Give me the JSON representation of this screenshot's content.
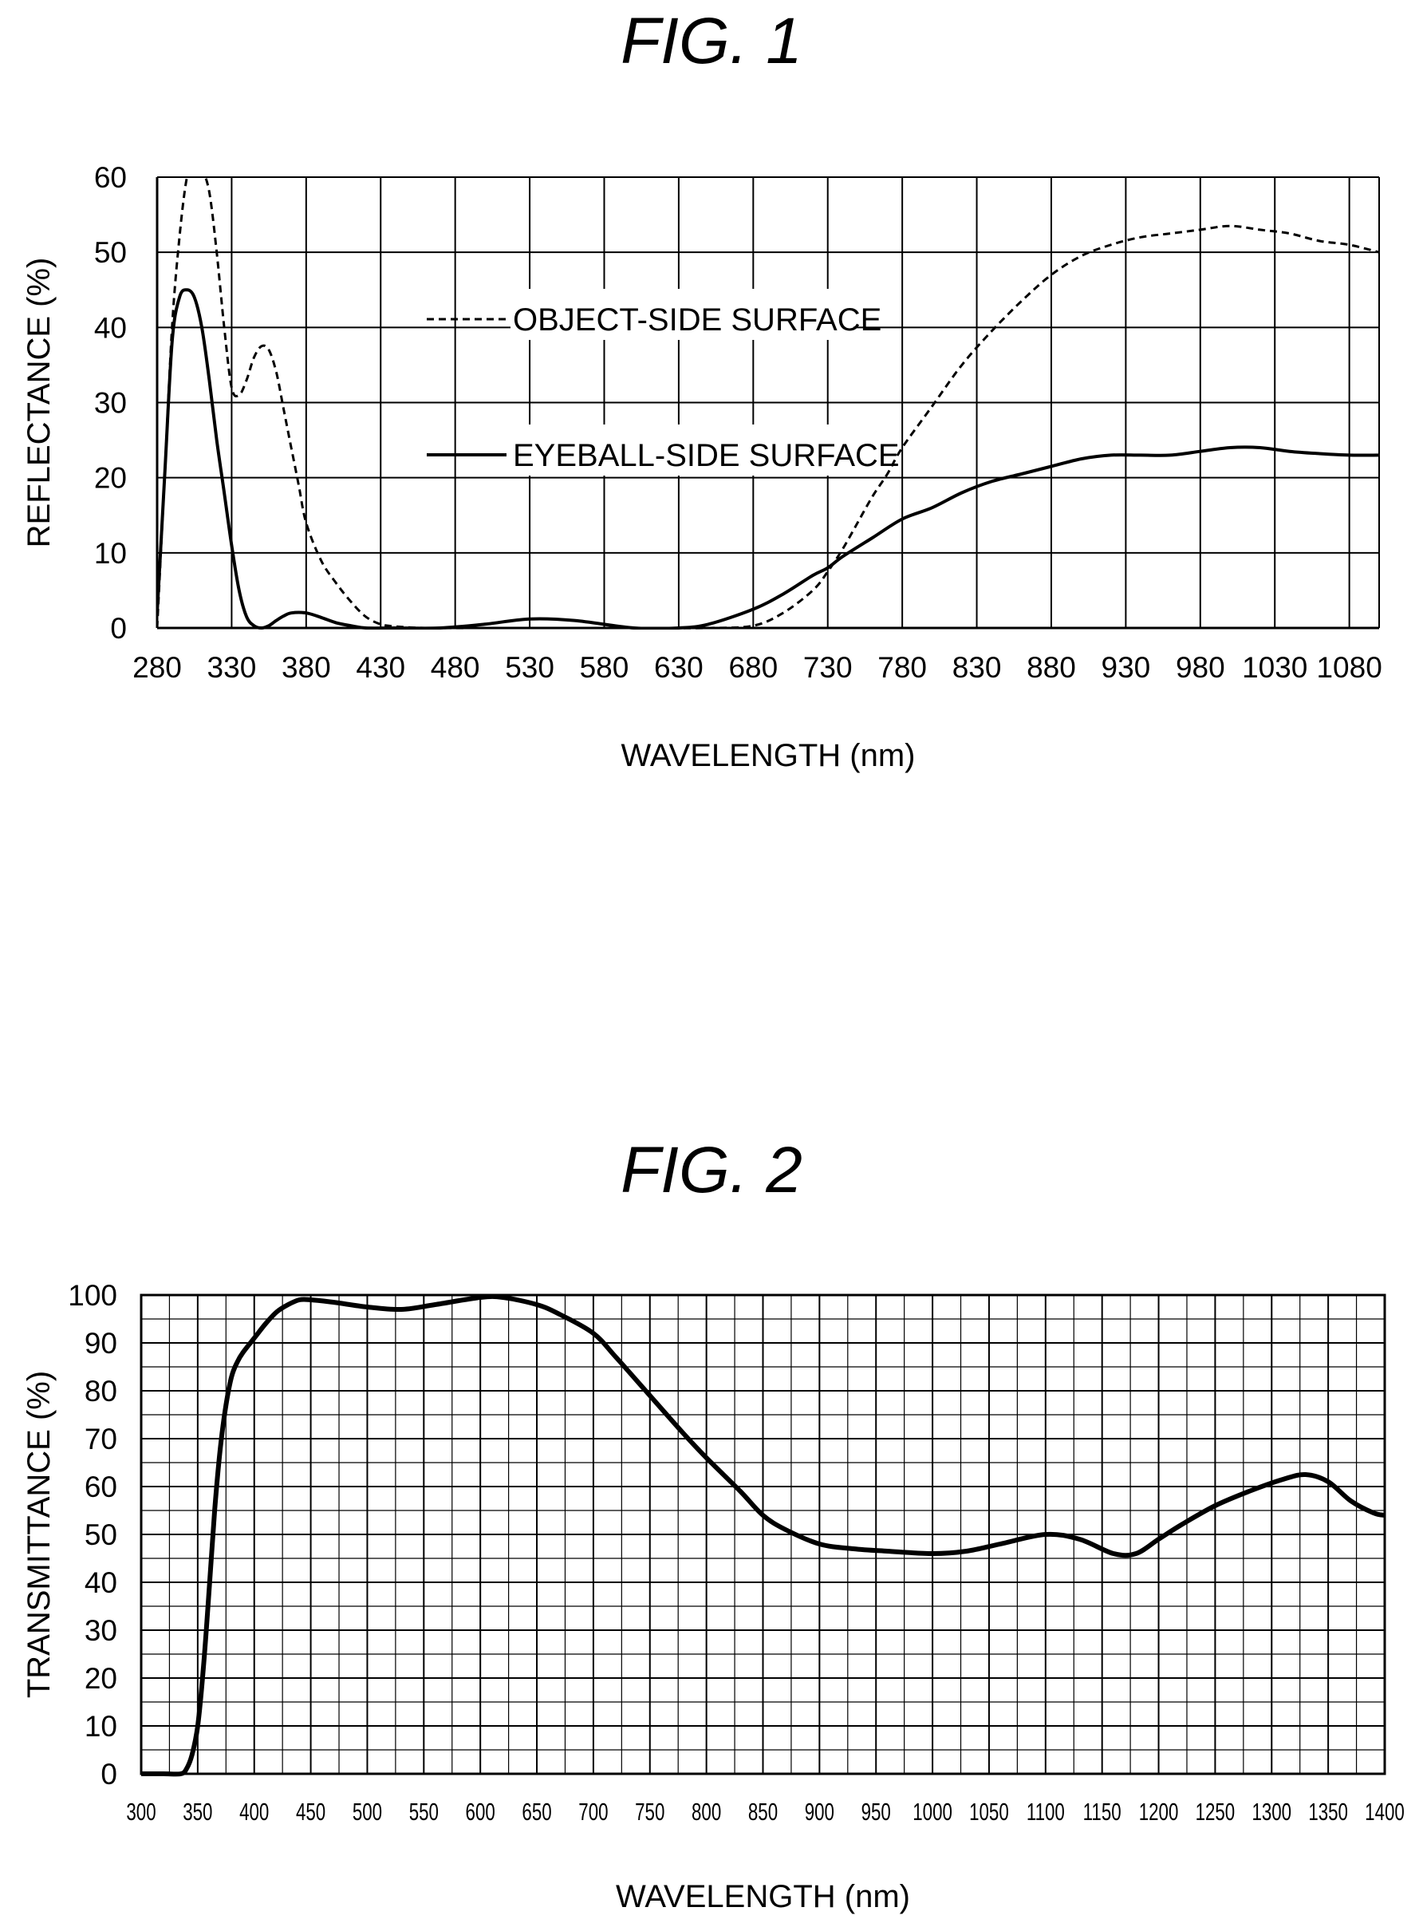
{
  "figure1": {
    "title": "FIG. 1",
    "chart_data": {
      "type": "line",
      "xlabel": "WAVELENGTH (nm)",
      "ylabel": "REFLECTANCE (%)",
      "xlim": [
        280,
        1100
      ],
      "ylim": [
        0,
        60
      ],
      "x_ticks": [
        "280",
        "330",
        "380",
        "430",
        "480",
        "530",
        "580",
        "630",
        "680",
        "730",
        "780",
        "830",
        "880",
        "930",
        "980",
        "1030",
        "1080"
      ],
      "y_ticks": [
        "0",
        "10",
        "20",
        "30",
        "40",
        "50",
        "60"
      ],
      "grid": true,
      "legend_entries": [
        "OBJECT-SIDE SURFACE",
        "EYEBALL-SIDE SURFACE"
      ],
      "series": [
        {
          "name": "OBJECT-SIDE SURFACE",
          "style": "dashed",
          "x": [
            280,
            285,
            290,
            295,
            300,
            305,
            310,
            315,
            320,
            325,
            330,
            335,
            340,
            345,
            350,
            355,
            360,
            365,
            370,
            375,
            380,
            390,
            400,
            410,
            420,
            430,
            440,
            460,
            500,
            550,
            600,
            650,
            680,
            700,
            720,
            730,
            740,
            750,
            760,
            770,
            780,
            800,
            820,
            840,
            860,
            880,
            900,
            920,
            940,
            960,
            980,
            1000,
            1020,
            1040,
            1060,
            1080,
            1100
          ],
          "y": [
            0,
            20,
            40,
            52,
            60,
            62,
            61,
            58,
            50,
            40,
            32,
            31,
            33,
            36,
            37.5,
            37,
            34,
            29,
            24,
            19,
            14,
            9,
            6,
            3.5,
            1.5,
            0.5,
            0.2,
            0,
            0,
            0,
            0,
            0,
            0.3,
            2,
            5,
            7.5,
            10.5,
            14,
            17.5,
            20.5,
            24,
            29.5,
            35,
            39.5,
            43.5,
            47,
            49.5,
            51,
            52,
            52.5,
            53,
            53.5,
            53,
            52.5,
            51.5,
            51,
            50
          ]
        },
        {
          "name": "EYEBALL-SIDE SURFACE",
          "style": "solid",
          "x": [
            280,
            285,
            290,
            295,
            300,
            305,
            310,
            315,
            320,
            325,
            330,
            335,
            340,
            345,
            350,
            355,
            360,
            365,
            370,
            380,
            390,
            400,
            410,
            420,
            440,
            470,
            500,
            530,
            560,
            600,
            630,
            650,
            680,
            700,
            720,
            730,
            740,
            760,
            780,
            800,
            820,
            840,
            860,
            880,
            900,
            920,
            940,
            960,
            980,
            1000,
            1020,
            1040,
            1060,
            1080,
            1100
          ],
          "y": [
            2,
            20,
            38,
            44,
            45,
            44,
            40,
            33,
            25,
            18,
            11,
            5,
            1.5,
            0.3,
            0,
            0.3,
            1,
            1.6,
            2,
            2,
            1.4,
            0.7,
            0.3,
            0,
            0,
            0,
            0.5,
            1.2,
            1,
            0,
            0,
            0.5,
            2.5,
            4.5,
            7,
            8,
            9.5,
            12,
            14.5,
            16,
            18,
            19.5,
            20.5,
            21.5,
            22.5,
            23,
            23,
            23,
            23.5,
            24,
            24,
            23.5,
            23.2,
            23,
            23
          ]
        }
      ]
    }
  },
  "figure2": {
    "title": "FIG. 2",
    "chart_data": {
      "type": "line",
      "xlabel": "WAVELENGTH (nm)",
      "ylabel": "TRANSMITTANCE (%)",
      "xlim": [
        300,
        1400
      ],
      "ylim": [
        0,
        100
      ],
      "x_ticks": [
        "300",
        "350",
        "400",
        "450",
        "500",
        "550",
        "600",
        "650",
        "700",
        "750",
        "800",
        "850",
        "900",
        "950",
        "1000",
        "1050",
        "1100",
        "1150",
        "1200",
        "1250",
        "1300",
        "1350",
        "1400"
      ],
      "y_ticks": [
        "0",
        "10",
        "20",
        "30",
        "40",
        "50",
        "60",
        "70",
        "80",
        "90",
        "100"
      ],
      "grid": true,
      "series": [
        {
          "style": "solid",
          "x": [
            300,
            320,
            335,
            340,
            345,
            350,
            355,
            360,
            365,
            370,
            375,
            380,
            385,
            390,
            400,
            410,
            420,
            430,
            440,
            450,
            470,
            500,
            530,
            560,
            600,
            620,
            650,
            670,
            700,
            720,
            750,
            780,
            800,
            830,
            850,
            870,
            900,
            930,
            960,
            1000,
            1030,
            1060,
            1100,
            1130,
            1160,
            1180,
            1200,
            1220,
            1250,
            1280,
            1310,
            1330,
            1350,
            1370,
            1390,
            1400
          ],
          "y": [
            0,
            0,
            0,
            1,
            4,
            10,
            22,
            38,
            55,
            68,
            77,
            83,
            86,
            88,
            91,
            94,
            96.5,
            98,
            99,
            99,
            98.5,
            97.5,
            97,
            98,
            99.5,
            99.5,
            98,
            96,
            92,
            87,
            79,
            71,
            66,
            59,
            54,
            51,
            48,
            47,
            46.5,
            46,
            46.5,
            48,
            50,
            49,
            46,
            46,
            49,
            52,
            56,
            59,
            61.5,
            62.5,
            61,
            57,
            54.5,
            54
          ]
        }
      ]
    }
  }
}
